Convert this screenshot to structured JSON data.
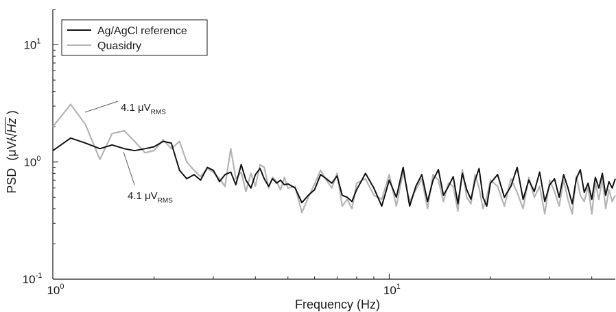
{
  "chart_data": {
    "type": "line",
    "title": "",
    "xlabel": "Frequency (Hz)",
    "ylabel": "PSD",
    "ylabel_unit": "(μV/",
    "ylabel_sqrt": "Hz",
    "ylabel_close": ")",
    "x_scale": "log",
    "y_scale": "log",
    "xlim": [
      1,
      47
    ],
    "ylim": [
      0.1,
      20
    ],
    "grid": false,
    "legend_position": "top-left",
    "x_ticks": [
      {
        "value": 1,
        "base": "10",
        "exp": "0"
      },
      {
        "value": 10,
        "base": "10",
        "exp": "1"
      }
    ],
    "y_ticks": [
      {
        "value": 0.1,
        "base": "10",
        "exp": "-1"
      },
      {
        "value": 1,
        "base": "10",
        "exp": "0"
      },
      {
        "value": 10,
        "base": "10",
        "exp": "1"
      }
    ],
    "annotations": [
      {
        "id": "quasidry",
        "prefix": "4.1 μV",
        "sub": "RMS"
      },
      {
        "id": "agagcl",
        "prefix": "4.1 μV",
        "sub": "RMS"
      }
    ],
    "series": [
      {
        "name": "Ag/AgCl reference",
        "color": "#111111",
        "x": [
          1.0,
          1.13,
          1.25,
          1.38,
          1.5,
          1.63,
          1.75,
          1.88,
          2.0,
          2.13,
          2.25,
          2.38,
          2.5,
          2.63,
          2.75,
          2.88,
          3.0,
          3.13,
          3.25,
          3.38,
          3.5,
          3.63,
          3.75,
          3.88,
          4.0,
          4.13,
          4.25,
          4.38,
          4.5,
          4.63,
          4.75,
          4.88,
          5.0,
          5.25,
          5.5,
          5.75,
          6.0,
          6.25,
          6.5,
          6.75,
          7.0,
          7.25,
          7.5,
          7.75,
          8.0,
          8.5,
          9.0,
          9.5,
          10.0,
          10.5,
          11.0,
          11.5,
          12.0,
          12.5,
          13.0,
          13.5,
          14.0,
          14.5,
          15.0,
          15.5,
          16.0,
          16.5,
          17.0,
          17.5,
          18.0,
          18.5,
          19.0,
          19.5,
          20.0,
          21.0,
          22.0,
          23.0,
          24.0,
          25.0,
          26.0,
          27.0,
          28.0,
          29.0,
          30.0,
          31.0,
          32.0,
          33.0,
          34.0,
          35.0,
          36.0,
          37.0,
          38.0,
          39.0,
          40.0,
          41.0,
          42.0,
          43.0,
          44.0,
          45.0,
          46.0,
          47.0
        ],
        "values": [
          1.25,
          1.6,
          1.45,
          1.3,
          1.4,
          1.3,
          1.25,
          1.3,
          1.35,
          1.5,
          1.45,
          0.85,
          0.72,
          0.78,
          0.7,
          0.9,
          0.85,
          0.68,
          0.78,
          0.82,
          0.64,
          0.95,
          0.7,
          0.6,
          0.78,
          0.88,
          0.72,
          0.62,
          0.72,
          0.66,
          0.7,
          0.64,
          0.65,
          0.6,
          0.45,
          0.52,
          0.58,
          0.78,
          0.72,
          0.66,
          0.76,
          0.52,
          0.5,
          0.46,
          0.58,
          0.8,
          0.6,
          0.42,
          0.7,
          0.5,
          0.9,
          0.42,
          0.62,
          0.78,
          0.46,
          0.7,
          0.86,
          0.52,
          0.62,
          0.75,
          0.44,
          0.8,
          0.58,
          0.48,
          0.7,
          0.88,
          0.5,
          0.42,
          0.66,
          0.78,
          0.5,
          0.62,
          0.9,
          0.48,
          0.7,
          0.56,
          0.82,
          0.46,
          0.64,
          0.72,
          0.5,
          0.78,
          0.6,
          0.44,
          0.72,
          0.86,
          0.55,
          0.66,
          0.48,
          0.74,
          0.6,
          0.8,
          0.52,
          0.68,
          0.6,
          0.72
        ]
      },
      {
        "name": "Quasidry",
        "color": "#b4b4b4",
        "x": [
          1.0,
          1.13,
          1.25,
          1.38,
          1.5,
          1.63,
          1.75,
          1.88,
          2.0,
          2.13,
          2.25,
          2.38,
          2.5,
          2.63,
          2.75,
          2.88,
          3.0,
          3.13,
          3.25,
          3.38,
          3.5,
          3.63,
          3.75,
          3.88,
          4.0,
          4.13,
          4.25,
          4.38,
          4.5,
          4.63,
          4.75,
          4.88,
          5.0,
          5.25,
          5.5,
          5.75,
          6.0,
          6.25,
          6.5,
          6.75,
          7.0,
          7.25,
          7.5,
          7.75,
          8.0,
          8.5,
          9.0,
          9.5,
          10.0,
          10.5,
          11.0,
          11.5,
          12.0,
          12.5,
          13.0,
          13.5,
          14.0,
          14.5,
          15.0,
          15.5,
          16.0,
          16.5,
          17.0,
          17.5,
          18.0,
          18.5,
          19.0,
          19.5,
          20.0,
          21.0,
          22.0,
          23.0,
          24.0,
          25.0,
          26.0,
          27.0,
          28.0,
          29.0,
          30.0,
          31.0,
          32.0,
          33.0,
          34.0,
          35.0,
          36.0,
          37.0,
          38.0,
          39.0,
          40.0,
          41.0,
          42.0,
          43.0,
          44.0,
          45.0,
          46.0,
          47.0
        ],
        "values": [
          2.0,
          3.1,
          2.1,
          1.05,
          1.75,
          1.85,
          1.5,
          1.2,
          1.25,
          1.55,
          1.3,
          1.5,
          1.0,
          0.85,
          0.75,
          0.88,
          0.82,
          0.72,
          0.62,
          1.3,
          0.72,
          0.82,
          0.56,
          0.8,
          0.62,
          0.95,
          0.9,
          0.6,
          0.74,
          0.68,
          0.58,
          0.74,
          0.6,
          0.62,
          0.37,
          0.5,
          0.65,
          0.85,
          0.7,
          0.6,
          0.8,
          0.42,
          0.48,
          0.4,
          0.66,
          0.72,
          0.52,
          0.48,
          0.78,
          0.42,
          0.82,
          0.46,
          0.58,
          0.72,
          0.4,
          0.78,
          0.7,
          0.46,
          0.66,
          0.62,
          0.38,
          0.86,
          0.5,
          0.44,
          0.78,
          0.6,
          0.4,
          0.5,
          0.7,
          0.62,
          0.42,
          0.72,
          0.55,
          0.4,
          0.74,
          0.5,
          0.62,
          0.36,
          0.7,
          0.56,
          0.42,
          0.7,
          0.48,
          0.36,
          0.76,
          0.52,
          0.46,
          0.62,
          0.36,
          0.66,
          0.48,
          0.72,
          0.4,
          0.58,
          0.46,
          0.52
        ]
      }
    ]
  }
}
